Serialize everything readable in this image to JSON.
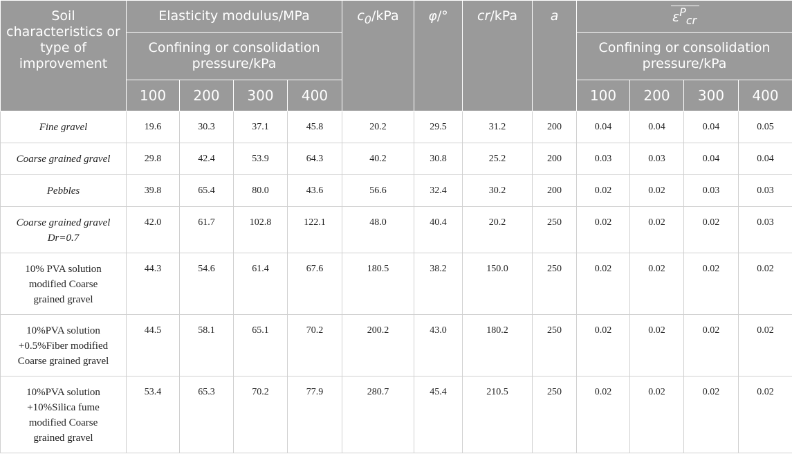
{
  "header": {
    "soil": "Soil characteristics or type of improvement",
    "elasticity": "Elasticity modulus/MPa",
    "confining_left": "Confining or consolidation pressure/kPa",
    "c0_sym": "c",
    "c0_sub": "0",
    "c0_unit": "/kPa",
    "phi_sym": "φ",
    "phi_unit": "/°",
    "cr_sym": "cr",
    "cr_unit": "/kPa",
    "a": "a",
    "eps_base": "ε",
    "eps_sup": "P",
    "eps_sub": "cr",
    "confining_right": "Confining or consolidation pressure/kPa",
    "pressures_left": [
      "100",
      "200",
      "300",
      "400"
    ],
    "pressures_right": [
      "100",
      "200",
      "300",
      "400"
    ]
  },
  "rows": [
    {
      "name": [
        "Fine gravel"
      ],
      "italic": true,
      "values": [
        "19.6",
        "30.3",
        "37.1",
        "45.8",
        "20.2",
        "29.5",
        "31.2",
        "200",
        "0.04",
        "0.04",
        "0.04",
        "0.05"
      ]
    },
    {
      "name": [
        "Coarse grained gravel"
      ],
      "italic": true,
      "values": [
        "29.8",
        "42.4",
        "53.9",
        "64.3",
        "40.2",
        "30.8",
        "25.2",
        "200",
        "0.03",
        "0.03",
        "0.04",
        "0.04"
      ]
    },
    {
      "name": [
        "Pebbles"
      ],
      "italic": true,
      "values": [
        "39.8",
        "65.4",
        "80.0",
        "43.6",
        "56.6",
        "32.4",
        "30.2",
        "200",
        "0.02",
        "0.02",
        "0.03",
        "0.03"
      ]
    },
    {
      "name": [
        "Coarse grained gravel",
        "Dr=0.7"
      ],
      "italic": true,
      "values": [
        "42.0",
        "61.7",
        "102.8",
        "122.1",
        "48.0",
        "40.4",
        "20.2",
        "250",
        "0.02",
        "0.02",
        "0.02",
        "0.03"
      ]
    },
    {
      "name": [
        "10% PVA solution",
        "modified Coarse",
        "grained gravel"
      ],
      "italic": false,
      "values": [
        "44.3",
        "54.6",
        "61.4",
        "67.6",
        "180.5",
        "38.2",
        "150.0",
        "250",
        "0.02",
        "0.02",
        "0.02",
        "0.02"
      ]
    },
    {
      "name": [
        "10%PVA solution",
        "+0.5%Fiber modified",
        "Coarse grained gravel"
      ],
      "italic": false,
      "values": [
        "44.5",
        "58.1",
        "65.1",
        "70.2",
        "200.2",
        "43.0",
        "180.2",
        "250",
        "0.02",
        "0.02",
        "0.02",
        "0.02"
      ]
    },
    {
      "name": [
        "10%PVA solution",
        "+10%Silica fume",
        "modified Coarse",
        "grained gravel"
      ],
      "italic": false,
      "values": [
        "53.4",
        "65.3",
        "70.2",
        "77.9",
        "280.7",
        "45.4",
        "210.5",
        "250",
        "0.02",
        "0.02",
        "0.02",
        "0.02"
      ]
    }
  ]
}
